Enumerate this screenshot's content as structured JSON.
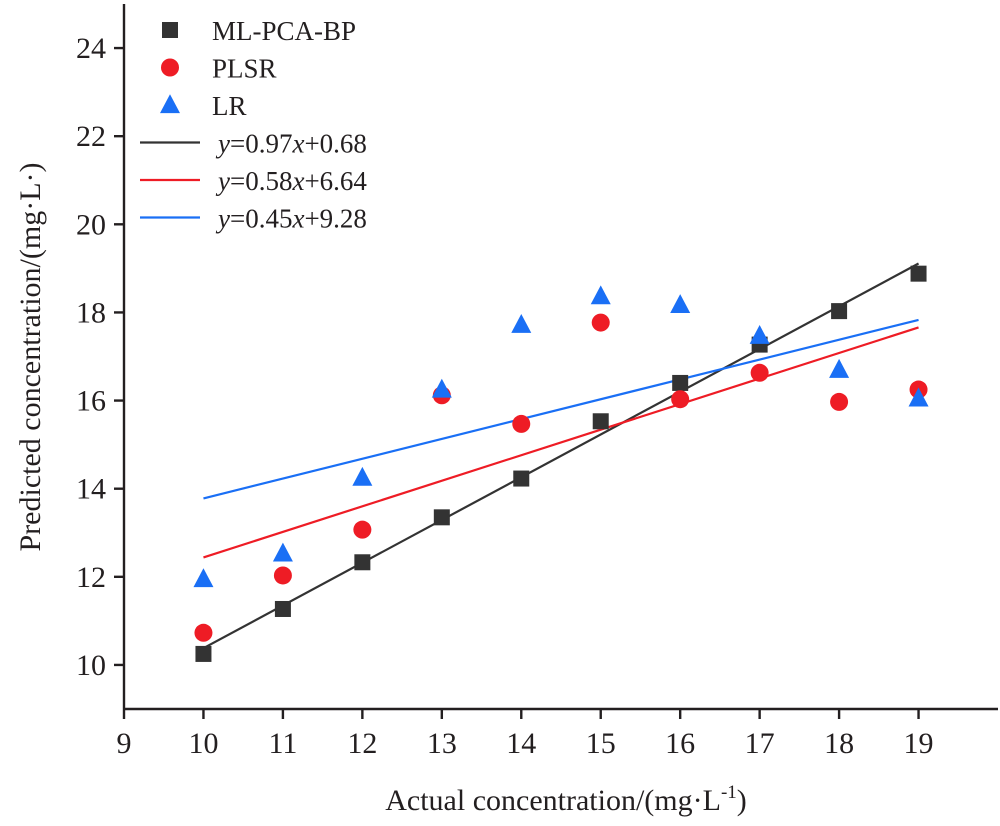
{
  "chart_data": {
    "type": "scatter",
    "xlabel": "Actual concentration/(mg·L",
    "xlabel_sup": "-1",
    "xlabel_close": ")",
    "ylabel": "Predicted concentration/(mg·L·)",
    "xlim": [
      9,
      20
    ],
    "ylim": [
      9,
      25
    ],
    "x_ticks": [
      9,
      10,
      11,
      12,
      13,
      14,
      15,
      16,
      17,
      18,
      19
    ],
    "y_ticks": [
      10,
      12,
      14,
      16,
      18,
      20,
      22,
      24
    ],
    "grid": false,
    "legend_position": "top-left",
    "series": [
      {
        "name": "ML-PCA-BP",
        "marker": "square",
        "color": "#333333",
        "x": [
          10,
          11,
          12,
          13,
          14,
          15,
          16,
          17,
          18,
          19
        ],
        "y": [
          10.25,
          11.27,
          12.33,
          13.35,
          14.23,
          15.53,
          16.4,
          17.27,
          18.03,
          18.88
        ]
      },
      {
        "name": "PLSR",
        "marker": "circle",
        "color": "#ee1c25",
        "x": [
          10,
          11,
          12,
          13,
          14,
          15,
          16,
          17,
          18,
          19
        ],
        "y": [
          10.73,
          12.03,
          13.07,
          16.12,
          15.47,
          17.77,
          16.03,
          16.63,
          15.97,
          16.25
        ]
      },
      {
        "name": "LR",
        "marker": "triangle",
        "color": "#1a6ff5",
        "x": [
          10,
          11,
          12,
          13,
          14,
          15,
          16,
          17,
          18,
          19
        ],
        "y": [
          11.95,
          12.53,
          14.25,
          16.25,
          17.72,
          18.37,
          18.17,
          17.47,
          16.7,
          16.05
        ]
      }
    ],
    "fit_lines": [
      {
        "label_y": "y",
        "label_rest": "=0.97",
        "label_x": "x",
        "label_tail": "+0.68",
        "slope": 0.97,
        "intercept": 0.68,
        "color": "#333333",
        "x_range": [
          10,
          19
        ]
      },
      {
        "label_y": "y",
        "label_rest": "=0.58",
        "label_x": "x",
        "label_tail": "+6.64",
        "slope": 0.58,
        "intercept": 6.64,
        "color": "#ee1c25",
        "x_range": [
          10,
          19
        ]
      },
      {
        "label_y": "y",
        "label_rest": "=0.45",
        "label_x": "x",
        "label_tail": "+9.28",
        "slope": 0.45,
        "intercept": 9.28,
        "color": "#1a6ff5",
        "x_range": [
          10,
          19
        ]
      }
    ]
  }
}
